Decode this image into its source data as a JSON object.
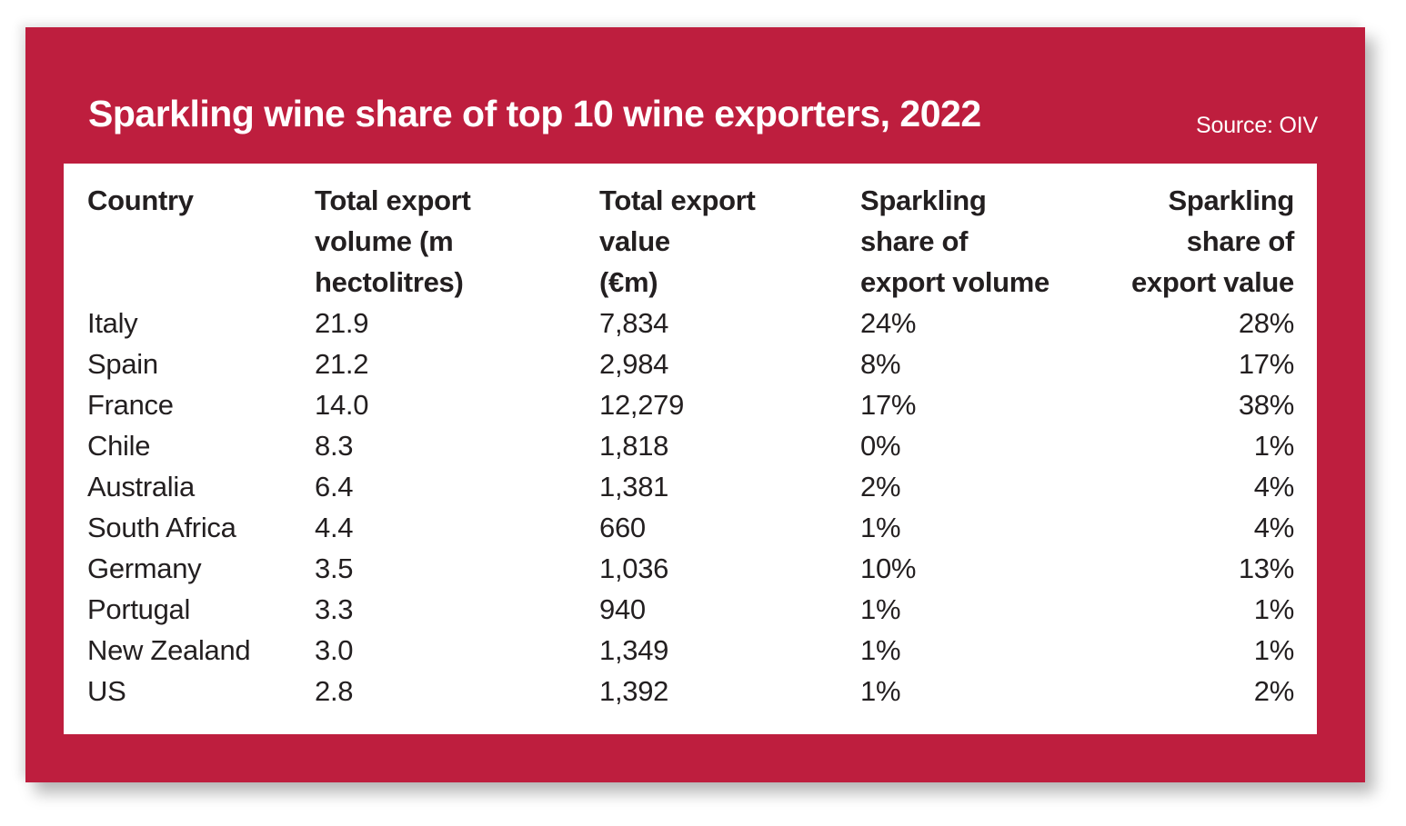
{
  "page": {
    "background_color": "#ffffff",
    "card_color": "#be1e3e",
    "panel_color": "#ffffff",
    "text_color": "#231f20",
    "title_color": "#ffffff"
  },
  "header": {
    "title": "Sparkling wine share of top 10 wine exporters, 2022",
    "source": "Source: OIV"
  },
  "table": {
    "columns": [
      {
        "label": "Country",
        "align": "left"
      },
      {
        "label": "Total export\nvolume (m\nhectolitres)",
        "align": "left"
      },
      {
        "label": "Total export\nvalue\n(€m)",
        "align": "left"
      },
      {
        "label": "Sparkling\nshare of\nexport volume",
        "align": "left"
      },
      {
        "label": "Sparkling\nshare of\nexport value",
        "align": "right"
      }
    ],
    "rows": [
      [
        "Italy",
        "21.9",
        "7,834",
        "24%",
        "28%"
      ],
      [
        "Spain",
        "21.2",
        "2,984",
        "8%",
        "17%"
      ],
      [
        "France",
        "14.0",
        "12,279",
        "17%",
        "38%"
      ],
      [
        "Chile",
        "8.3",
        "1,818",
        "0%",
        "1%"
      ],
      [
        "Australia",
        "6.4",
        "1,381",
        "2%",
        "4%"
      ],
      [
        "South Africa",
        "4.4",
        "660",
        "1%",
        "4%"
      ],
      [
        "Germany",
        "3.5",
        "1,036",
        "10%",
        "13%"
      ],
      [
        "Portugal",
        "3.3",
        "940",
        "1%",
        "1%"
      ],
      [
        "New Zealand",
        "3.0",
        "1,349",
        "1%",
        "1%"
      ],
      [
        "US",
        "2.8",
        "1,392",
        "1%",
        "2%"
      ]
    ]
  },
  "chart_data": {
    "type": "table",
    "title": "Sparkling wine share of top 10 wine exporters, 2022",
    "source": "Source: OIV",
    "columns": [
      "Country",
      "Total export volume (m hectolitres)",
      "Total export value (€m)",
      "Sparkling share of export volume",
      "Sparkling share of export value"
    ],
    "records": [
      {
        "country": "Italy",
        "total_export_volume_m_hl": 21.9,
        "total_export_value_eur_m": 7834,
        "sparkling_share_export_volume_pct": 24,
        "sparkling_share_export_value_pct": 28
      },
      {
        "country": "Spain",
        "total_export_volume_m_hl": 21.2,
        "total_export_value_eur_m": 2984,
        "sparkling_share_export_volume_pct": 8,
        "sparkling_share_export_value_pct": 17
      },
      {
        "country": "France",
        "total_export_volume_m_hl": 14.0,
        "total_export_value_eur_m": 12279,
        "sparkling_share_export_volume_pct": 17,
        "sparkling_share_export_value_pct": 38
      },
      {
        "country": "Chile",
        "total_export_volume_m_hl": 8.3,
        "total_export_value_eur_m": 1818,
        "sparkling_share_export_volume_pct": 0,
        "sparkling_share_export_value_pct": 1
      },
      {
        "country": "Australia",
        "total_export_volume_m_hl": 6.4,
        "total_export_value_eur_m": 1381,
        "sparkling_share_export_volume_pct": 2,
        "sparkling_share_export_value_pct": 4
      },
      {
        "country": "South Africa",
        "total_export_volume_m_hl": 4.4,
        "total_export_value_eur_m": 660,
        "sparkling_share_export_volume_pct": 1,
        "sparkling_share_export_value_pct": 4
      },
      {
        "country": "Germany",
        "total_export_volume_m_hl": 3.5,
        "total_export_value_eur_m": 1036,
        "sparkling_share_export_volume_pct": 10,
        "sparkling_share_export_value_pct": 13
      },
      {
        "country": "Portugal",
        "total_export_volume_m_hl": 3.3,
        "total_export_value_eur_m": 940,
        "sparkling_share_export_volume_pct": 1,
        "sparkling_share_export_value_pct": 1
      },
      {
        "country": "New Zealand",
        "total_export_volume_m_hl": 3.0,
        "total_export_value_eur_m": 1349,
        "sparkling_share_export_volume_pct": 1,
        "sparkling_share_export_value_pct": 1
      },
      {
        "country": "US",
        "total_export_volume_m_hl": 2.8,
        "total_export_value_eur_m": 1392,
        "sparkling_share_export_volume_pct": 1,
        "sparkling_share_export_value_pct": 2
      }
    ]
  }
}
